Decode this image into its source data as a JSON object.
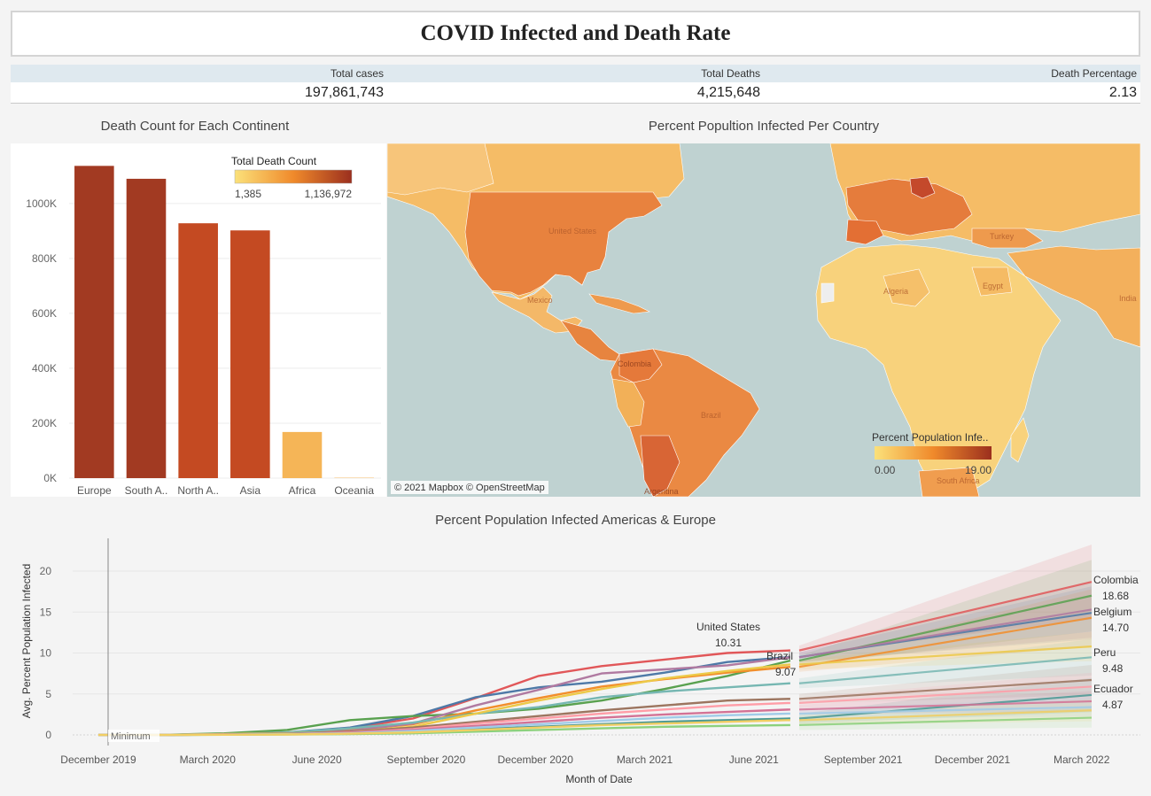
{
  "header": {
    "title": "COVID Infected and Death Rate"
  },
  "kpis": {
    "total_cases_label": "Total cases",
    "total_cases_value": "197,861,743",
    "total_deaths_label": "Total Deaths",
    "total_deaths_value": "4,215,648",
    "death_pct_label": "Death Percentage",
    "death_pct_value": "2.13"
  },
  "bar_panel": {
    "title": "Death Count for Each Continent",
    "legend_title": "Total Death Count",
    "legend_min": "1,385",
    "legend_max": "1,136,972"
  },
  "map_panel": {
    "title": "Percent Popultion Infected Per Country",
    "legend_title": "Percent Population Infe..",
    "legend_min": "0.00",
    "legend_max": "19.00",
    "attribution": "© 2021 Mapbox © OpenStreetMap",
    "visible_labels": [
      "United States",
      "Mexico",
      "Brazil",
      "Colombia",
      "Argentina",
      "Algeria",
      "Egypt",
      "Turkey",
      "India",
      "South Africa"
    ]
  },
  "line_panel": {
    "title": "Percent Population Infected Americas & Europe",
    "minimum_label": "Minimum"
  },
  "colors": {
    "bar_dark": "#a23a22",
    "bar_mid": "#c44a22",
    "bar_light": "#f5b557",
    "map_water": "#bfd2d1"
  },
  "chart_data": [
    {
      "type": "bar",
      "title": "Death Count for Each Continent",
      "categories": [
        "Europe",
        "South A..",
        "North A..",
        "Asia",
        "Africa",
        "Oceania"
      ],
      "values": [
        1136972,
        1090000,
        928000,
        902000,
        168000,
        1385
      ],
      "ylim": [
        0,
        1180000
      ],
      "yticks": [
        0,
        200000,
        400000,
        600000,
        800000,
        1000000
      ],
      "ytick_labels": [
        "0K",
        "200K",
        "400K",
        "600K",
        "800K",
        "1000K"
      ],
      "legend_placement": "top-right",
      "grid": true
    },
    {
      "type": "line",
      "title": "Percent Population Infected Americas & Europe",
      "xlabel": "Month of Date",
      "ylabel": "Avg. Percent Population Infected",
      "ylim": [
        0,
        24
      ],
      "yticks": [
        0,
        5,
        10,
        15,
        20
      ],
      "x_ticks": [
        "December 2019",
        "March 2020",
        "June 2020",
        "September 2020",
        "December 2020",
        "March 2021",
        "June 2021",
        "September 2021",
        "December 2021",
        "March 2022"
      ],
      "x_range": [
        "2019-12",
        "2022-05"
      ],
      "actual_end": "2021-07",
      "forecast_start": "2021-08",
      "forecast_end": "2022-04",
      "labeled_points": [
        {
          "name": "United States",
          "value": "10.31"
        },
        {
          "name": "Brazil",
          "value": "9.07"
        },
        {
          "name": "Colombia",
          "value": "18.68"
        },
        {
          "name": "Belgium",
          "value": "14.70"
        },
        {
          "name": "Peru",
          "value": "9.48"
        },
        {
          "name": "Ecuador",
          "value": "4.87"
        }
      ],
      "series": [
        {
          "color": "#e15759",
          "values": [
            0,
            0,
            0.1,
            0.3,
            0.8,
            2.0,
            4.5,
            7.2,
            8.4,
            9.2,
            10.0,
            10.31
          ],
          "forecast_end": 18.68
        },
        {
          "color": "#4e79a7",
          "values": [
            0,
            0,
            0.1,
            0.3,
            0.9,
            2.3,
            4.6,
            5.8,
            6.5,
            7.6,
            8.9,
            9.5
          ],
          "forecast_end": 14.9
        },
        {
          "color": "#59a14f",
          "values": [
            0,
            0,
            0.2,
            0.6,
            1.8,
            2.3,
            2.6,
            3.2,
            4.2,
            5.6,
            7.2,
            9.07
          ],
          "forecast_end": 17.0
        },
        {
          "color": "#f28e2b",
          "values": [
            0,
            0,
            0.1,
            0.3,
            0.6,
            1.3,
            3.0,
            4.5,
            5.9,
            6.8,
            7.6,
            8.3
          ],
          "forecast_end": 14.3
        },
        {
          "color": "#b07aa1",
          "values": [
            0,
            0,
            0.1,
            0.2,
            0.5,
            1.4,
            3.6,
            5.5,
            7.5,
            8.0,
            8.5,
            9.48
          ],
          "forecast_end": 15.3
        },
        {
          "color": "#76b7b2",
          "values": [
            0,
            0,
            0.1,
            0.3,
            0.8,
            1.5,
            2.6,
            3.4,
            4.6,
            5.3,
            5.8,
            6.3
          ],
          "forecast_end": 9.48
        },
        {
          "color": "#edc948",
          "values": [
            0,
            0,
            0.1,
            0.2,
            0.4,
            1.0,
            2.6,
            4.2,
            5.6,
            6.9,
            7.8,
            8.6
          ],
          "forecast_end": 10.8
        },
        {
          "color": "#9c755f",
          "values": [
            0,
            0,
            0.05,
            0.15,
            0.4,
            0.9,
            1.6,
            2.3,
            3.0,
            3.6,
            4.2,
            4.4
          ],
          "forecast_end": 6.7
        },
        {
          "color": "#ff9da7",
          "values": [
            0,
            0,
            0.05,
            0.1,
            0.3,
            0.7,
            1.4,
            2.0,
            2.6,
            3.1,
            3.6,
            3.9
          ],
          "forecast_end": 5.9
        },
        {
          "color": "#8cd17d",
          "values": [
            0,
            0,
            0.02,
            0.05,
            0.1,
            0.2,
            0.4,
            0.6,
            0.8,
            1.0,
            1.1,
            1.2
          ],
          "forecast_end": 2.1
        },
        {
          "color": "#499894",
          "values": [
            0,
            0,
            0.03,
            0.1,
            0.2,
            0.4,
            0.7,
            1.0,
            1.3,
            1.6,
            1.8,
            2.0
          ],
          "forecast_end": 4.87
        },
        {
          "color": "#d37295",
          "values": [
            0,
            0,
            0.04,
            0.1,
            0.25,
            0.6,
            1.1,
            1.6,
            2.1,
            2.5,
            2.8,
            3.1
          ],
          "forecast_end": 4.1
        },
        {
          "color": "#a0cbe8",
          "values": [
            0,
            0,
            0.03,
            0.1,
            0.2,
            0.5,
            0.9,
            1.3,
            1.7,
            2.1,
            2.4,
            2.6
          ],
          "forecast_end": 3.4
        },
        {
          "color": "#f1ce63",
          "values": [
            0,
            0,
            0.02,
            0.05,
            0.15,
            0.3,
            0.6,
            0.9,
            1.2,
            1.4,
            1.6,
            1.8
          ],
          "forecast_end": 3.0
        }
      ]
    }
  ]
}
